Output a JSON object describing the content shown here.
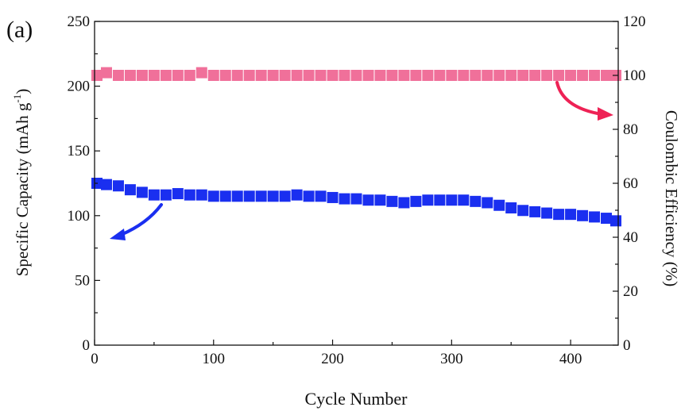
{
  "panel_label": "(a)",
  "chart_data": {
    "type": "scatter",
    "xlabel": "Cycle Number",
    "ylabel_left_main": "Specific Capacity (mAh g",
    "ylabel_left_sup": "-1",
    "ylabel_left_tail": ")",
    "ylabel_right": "Coulombic Efficiency (%)",
    "xlim": [
      0,
      440
    ],
    "ylim_left": [
      0,
      250
    ],
    "ylim_right": [
      0,
      120
    ],
    "x_ticks": [
      0,
      100,
      200,
      300,
      400
    ],
    "y_ticks_left": [
      0,
      50,
      100,
      150,
      200,
      250
    ],
    "y_ticks_right": [
      0,
      20,
      40,
      60,
      80,
      100,
      120
    ],
    "grid": false,
    "series": [
      {
        "axis": "left",
        "color": "#1a2ff0",
        "marker": "square",
        "points": [
          [
            2,
            125
          ],
          [
            10,
            124
          ],
          [
            20,
            123
          ],
          [
            30,
            120
          ],
          [
            40,
            118
          ],
          [
            50,
            116
          ],
          [
            60,
            116
          ],
          [
            70,
            117
          ],
          [
            80,
            116
          ],
          [
            90,
            116
          ],
          [
            100,
            115
          ],
          [
            110,
            115
          ],
          [
            120,
            115
          ],
          [
            130,
            115
          ],
          [
            140,
            115
          ],
          [
            150,
            115
          ],
          [
            160,
            115
          ],
          [
            170,
            116
          ],
          [
            180,
            115
          ],
          [
            190,
            115
          ],
          [
            200,
            114
          ],
          [
            210,
            113
          ],
          [
            220,
            113
          ],
          [
            230,
            112
          ],
          [
            240,
            112
          ],
          [
            250,
            111
          ],
          [
            260,
            110
          ],
          [
            270,
            111
          ],
          [
            280,
            112
          ],
          [
            290,
            112
          ],
          [
            300,
            112
          ],
          [
            310,
            112
          ],
          [
            320,
            111
          ],
          [
            330,
            110
          ],
          [
            340,
            108
          ],
          [
            350,
            106
          ],
          [
            360,
            104
          ],
          [
            370,
            103
          ],
          [
            380,
            102
          ],
          [
            390,
            101
          ],
          [
            400,
            101
          ],
          [
            410,
            100
          ],
          [
            420,
            99
          ],
          [
            430,
            98
          ],
          [
            438,
            96
          ]
        ]
      },
      {
        "axis": "right",
        "color": "#f0709a",
        "marker": "square",
        "points": [
          [
            2,
            100
          ],
          [
            10,
            101
          ],
          [
            20,
            100
          ],
          [
            30,
            100
          ],
          [
            40,
            100
          ],
          [
            50,
            100
          ],
          [
            60,
            100
          ],
          [
            70,
            100
          ],
          [
            80,
            100
          ],
          [
            90,
            101
          ],
          [
            100,
            100
          ],
          [
            110,
            100
          ],
          [
            120,
            100
          ],
          [
            130,
            100
          ],
          [
            140,
            100
          ],
          [
            150,
            100
          ],
          [
            160,
            100
          ],
          [
            170,
            100
          ],
          [
            180,
            100
          ],
          [
            190,
            100
          ],
          [
            200,
            100
          ],
          [
            210,
            100
          ],
          [
            220,
            100
          ],
          [
            230,
            100
          ],
          [
            240,
            100
          ],
          [
            250,
            100
          ],
          [
            260,
            100
          ],
          [
            270,
            100
          ],
          [
            280,
            100
          ],
          [
            290,
            100
          ],
          [
            300,
            100
          ],
          [
            310,
            100
          ],
          [
            320,
            100
          ],
          [
            330,
            100
          ],
          [
            340,
            100
          ],
          [
            350,
            100
          ],
          [
            360,
            100
          ],
          [
            370,
            100
          ],
          [
            380,
            100
          ],
          [
            390,
            100
          ],
          [
            400,
            100
          ],
          [
            410,
            100
          ],
          [
            420,
            100
          ],
          [
            430,
            100
          ],
          [
            438,
            100
          ]
        ]
      }
    ],
    "annotations": [
      {
        "type": "arrow",
        "color": "#1a2ff0",
        "points_to": "left axis"
      },
      {
        "type": "arrow",
        "color": "#ee2255",
        "points_to": "right axis"
      }
    ]
  }
}
